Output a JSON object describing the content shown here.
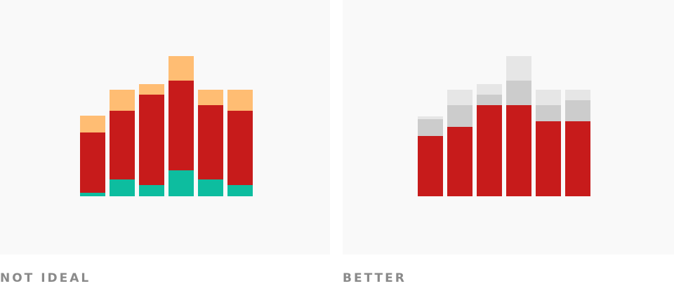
{
  "chart_data": [
    {
      "type": "bar",
      "stacked": true,
      "title": "NOT IDEAL",
      "series": [
        {
          "color": "#0dbd9f",
          "values": [
            5,
            24,
            16,
            37,
            24,
            16
          ]
        },
        {
          "color": "#c71b1b",
          "values": [
            86,
            98,
            129,
            128,
            106,
            106
          ]
        },
        {
          "color": "#ffbd73",
          "values": [
            24,
            30,
            15,
            35,
            22,
            30
          ]
        }
      ]
    },
    {
      "type": "bar",
      "stacked": true,
      "title": "BETTER",
      "series": [
        {
          "color": "#c71b1b",
          "values": [
            86,
            99,
            130,
            130,
            107,
            107
          ]
        },
        {
          "color": "#cccccc",
          "values": [
            24,
            31,
            15,
            35,
            23,
            30
          ]
        },
        {
          "color": "#e6e6e6",
          "values": [
            4,
            22,
            15,
            35,
            22,
            15
          ]
        }
      ]
    }
  ]
}
